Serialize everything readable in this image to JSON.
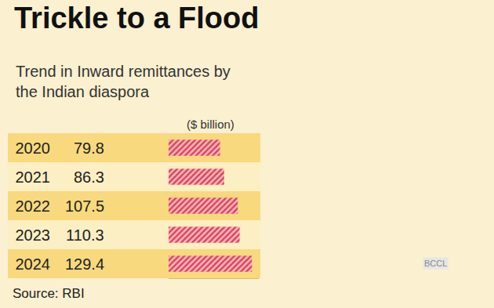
{
  "chart_data": {
    "type": "bar",
    "orientation": "horizontal",
    "title": "Trickle to a Flood",
    "subtitle": "Trend in Inward remittances by the Indian diaspora",
    "xlabel": "($ billion)",
    "source": "Source: RBI",
    "annotations": [
      "BCCL"
    ],
    "categories": [
      "2020",
      "2021",
      "2022",
      "2023",
      "2024"
    ],
    "values": [
      79.8,
      86.3,
      107.5,
      110.3,
      129.4
    ],
    "color": "#e23a50",
    "xlim": [
      0,
      140
    ],
    "grid": false,
    "data_labels": true,
    "tick_labels": "y"
  }
}
